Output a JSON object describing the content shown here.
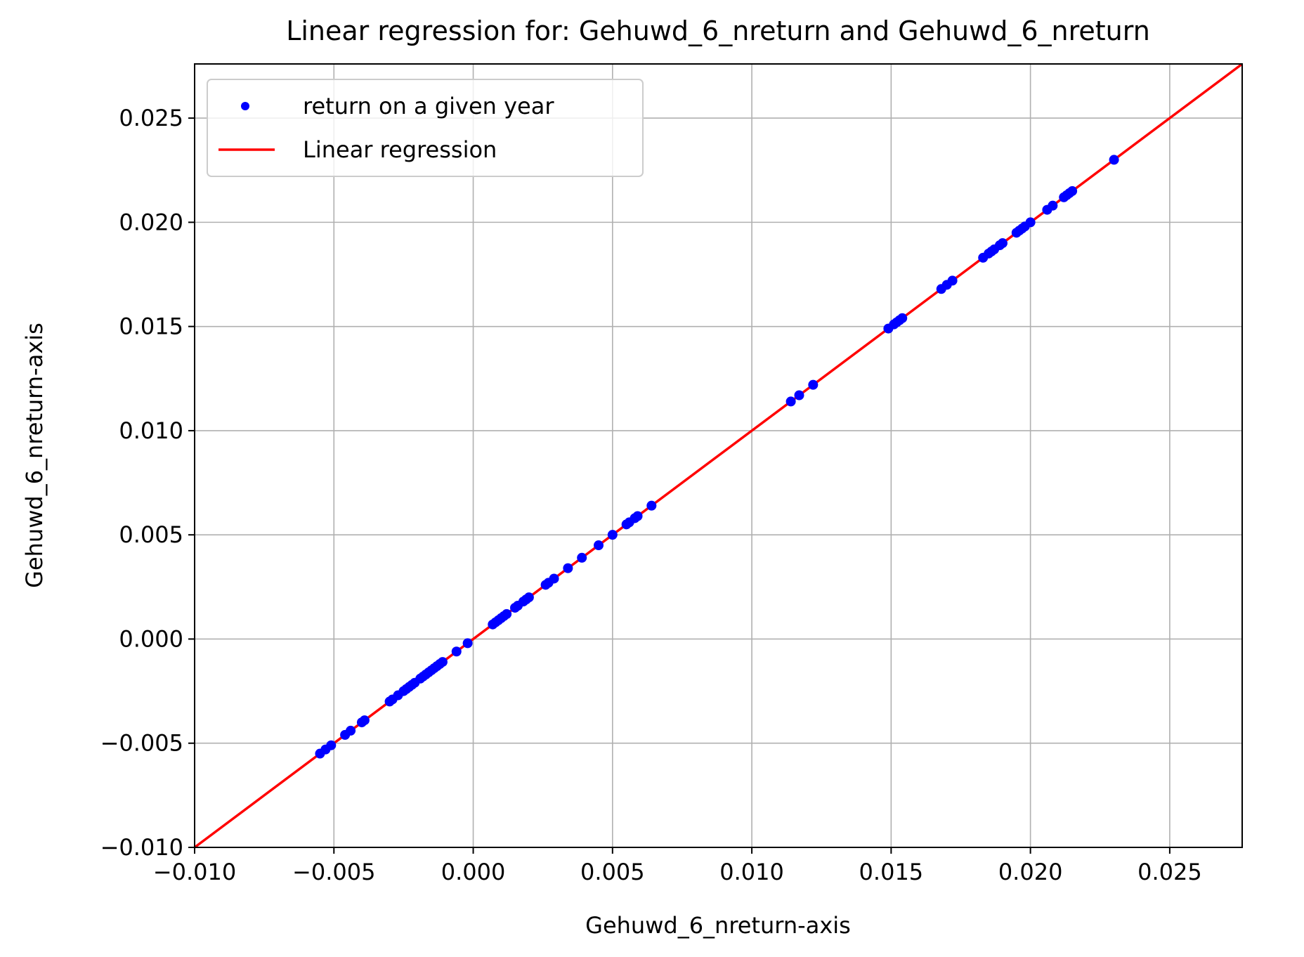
{
  "chart_data": {
    "type": "scatter",
    "title": "Linear regression for: Gehuwd_6_nreturn and Gehuwd_6_nreturn",
    "xlabel": "Gehuwd_6_nreturn-axis",
    "ylabel": "Gehuwd_6_nreturn-axis",
    "xlim": [
      -0.01,
      0.0276
    ],
    "ylim": [
      -0.01,
      0.0276
    ],
    "xticks": [
      -0.01,
      -0.005,
      0.0,
      0.005,
      0.01,
      0.015,
      0.02,
      0.025
    ],
    "yticks": [
      -0.01,
      -0.005,
      0.0,
      0.005,
      0.01,
      0.015,
      0.02,
      0.025
    ],
    "xtick_labels": [
      "−0.010",
      "−0.005",
      "0.000",
      "0.005",
      "0.010",
      "0.015",
      "0.020",
      "0.025"
    ],
    "ytick_labels": [
      "−0.010",
      "−0.005",
      "0.000",
      "0.005",
      "0.010",
      "0.015",
      "0.020",
      "0.025"
    ],
    "grid": true,
    "legend_position": "upper-left",
    "colors": {
      "scatter": "#0000ff",
      "line": "#ff0000",
      "grid": "#b0b0b0"
    },
    "series": [
      {
        "name": "return on a given year",
        "kind": "scatter",
        "x": [
          -0.0055,
          -0.0053,
          -0.0051,
          -0.0046,
          -0.0044,
          -0.004,
          -0.0039,
          -0.003,
          -0.0029,
          -0.0027,
          -0.0025,
          -0.0024,
          -0.0023,
          -0.0022,
          -0.0021,
          -0.0019,
          -0.0018,
          -0.0017,
          -0.0016,
          -0.0015,
          -0.0014,
          -0.0013,
          -0.0012,
          -0.0011,
          -0.0006,
          -0.0002,
          0.0007,
          0.0008,
          0.0009,
          0.001,
          0.0011,
          0.0012,
          0.0015,
          0.0016,
          0.0018,
          0.0019,
          0.002,
          0.0026,
          0.0027,
          0.0029,
          0.0034,
          0.0039,
          0.0045,
          0.005,
          0.0055,
          0.0056,
          0.0058,
          0.0059,
          0.0064,
          0.0114,
          0.0117,
          0.0122,
          0.0149,
          0.0151,
          0.0152,
          0.0153,
          0.0154,
          0.0168,
          0.017,
          0.0172,
          0.0183,
          0.0185,
          0.0186,
          0.0187,
          0.0189,
          0.019,
          0.0195,
          0.0196,
          0.0197,
          0.0198,
          0.02,
          0.0206,
          0.0208,
          0.0212,
          0.0213,
          0.0214,
          0.0215,
          0.023
        ],
        "y": [
          -0.0055,
          -0.0053,
          -0.0051,
          -0.0046,
          -0.0044,
          -0.004,
          -0.0039,
          -0.003,
          -0.0029,
          -0.0027,
          -0.0025,
          -0.0024,
          -0.0023,
          -0.0022,
          -0.0021,
          -0.0019,
          -0.0018,
          -0.0017,
          -0.0016,
          -0.0015,
          -0.0014,
          -0.0013,
          -0.0012,
          -0.0011,
          -0.0006,
          -0.0002,
          0.0007,
          0.0008,
          0.0009,
          0.001,
          0.0011,
          0.0012,
          0.0015,
          0.0016,
          0.0018,
          0.0019,
          0.002,
          0.0026,
          0.0027,
          0.0029,
          0.0034,
          0.0039,
          0.0045,
          0.005,
          0.0055,
          0.0056,
          0.0058,
          0.0059,
          0.0064,
          0.0114,
          0.0117,
          0.0122,
          0.0149,
          0.0151,
          0.0152,
          0.0153,
          0.0154,
          0.0168,
          0.017,
          0.0172,
          0.0183,
          0.0185,
          0.0186,
          0.0187,
          0.0189,
          0.019,
          0.0195,
          0.0196,
          0.0197,
          0.0198,
          0.02,
          0.0206,
          0.0208,
          0.0212,
          0.0213,
          0.0214,
          0.0215,
          0.023
        ]
      },
      {
        "name": "Linear regression",
        "kind": "line",
        "x": [
          -0.01,
          0.0276
        ],
        "y": [
          -0.01,
          0.0276
        ]
      }
    ]
  }
}
